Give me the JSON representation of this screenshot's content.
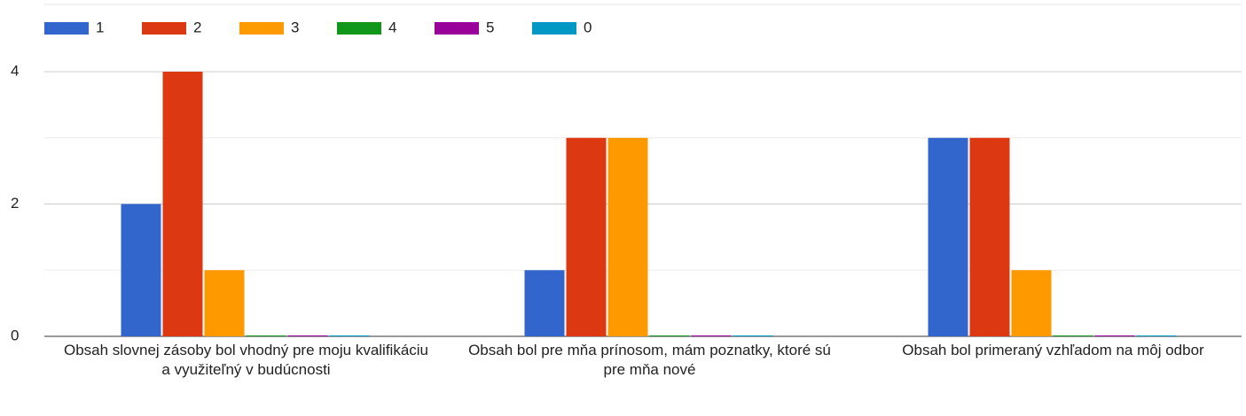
{
  "chart_data": {
    "type": "bar",
    "categories": [
      "Obsah slovnej zásoby bol vhodný pre moju kvalifikáciu a využiteľný v budúcnosti",
      "Obsah bol pre mňa prínosom, mám poznatky, ktoré sú pre mňa nové",
      "Obsah bol primeraný vzhľadom na môj odbor"
    ],
    "series": [
      {
        "name": "1",
        "color": "#3366cc",
        "values": [
          2,
          1,
          3
        ]
      },
      {
        "name": "2",
        "color": "#dc3912",
        "values": [
          4,
          3,
          3
        ]
      },
      {
        "name": "3",
        "color": "#ff9900",
        "values": [
          1,
          3,
          1
        ]
      },
      {
        "name": "4",
        "color": "#109618",
        "values": [
          0,
          0,
          0
        ]
      },
      {
        "name": "5",
        "color": "#990099",
        "values": [
          0,
          0,
          0
        ]
      },
      {
        "name": "0",
        "color": "#0099c6",
        "values": [
          0,
          0,
          0
        ]
      }
    ],
    "ylim": [
      0,
      4
    ],
    "yticks": [
      0,
      2,
      4
    ],
    "minor_yticks": [
      1,
      3
    ],
    "grid": true,
    "legend": "top"
  }
}
